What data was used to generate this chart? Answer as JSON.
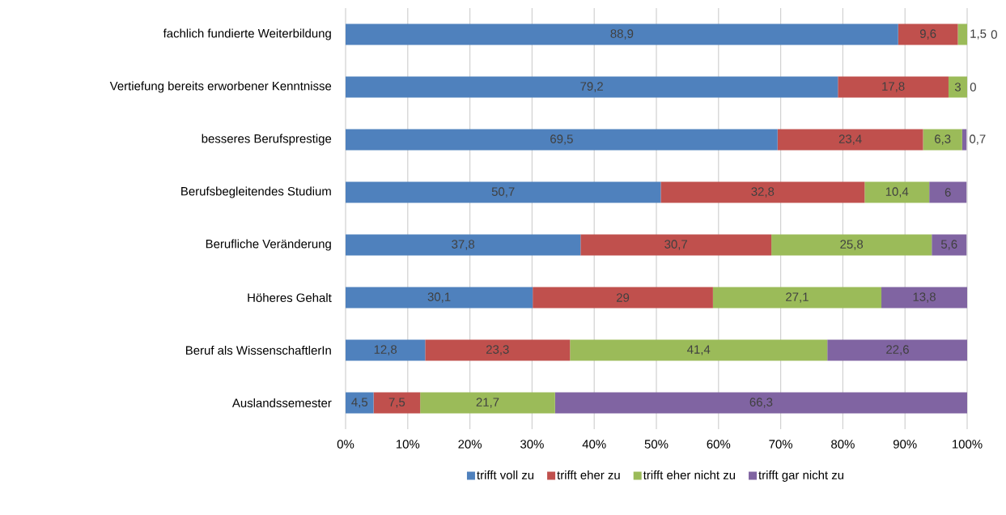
{
  "chart_data": {
    "type": "bar",
    "orientation": "horizontal",
    "stacked": true,
    "grid": "x",
    "legend": "bottom",
    "categories": [
      "fachlich fundierte Weiterbildung",
      "Vertiefung bereits erworbener Kenntnisse",
      "besseres Berufsprestige",
      "Berufsbegleitendes Studium",
      "Berufliche Veränderung",
      "Höheres Gehalt",
      "Beruf als WissenschaftlerIn",
      "Auslandssemester"
    ],
    "xlim": [
      0,
      100
    ],
    "xticks": [
      {
        "value": 0,
        "label": "0%"
      },
      {
        "value": 10,
        "label": "10%"
      },
      {
        "value": 20,
        "label": "20%"
      },
      {
        "value": 30,
        "label": "30%"
      },
      {
        "value": 40,
        "label": "40%"
      },
      {
        "value": 50,
        "label": "50%"
      },
      {
        "value": 60,
        "label": "60%"
      },
      {
        "value": 70,
        "label": "70%"
      },
      {
        "value": 80,
        "label": "80%"
      },
      {
        "value": 90,
        "label": "90%"
      },
      {
        "value": 100,
        "label": "100%"
      }
    ],
    "series": [
      {
        "name": "trifft voll zu",
        "color": "#4f81bd",
        "values": [
          88.9,
          79.2,
          69.5,
          50.7,
          37.8,
          30.1,
          12.8,
          4.5
        ],
        "value_labels": [
          "88,9",
          "79,2",
          "69,5",
          "50,7",
          "37,8",
          "30,1",
          "12,8",
          "4,5"
        ]
      },
      {
        "name": "trifft eher zu",
        "color": "#c0504d",
        "values": [
          9.6,
          17.8,
          23.4,
          32.8,
          30.7,
          29,
          23.3,
          7.5
        ],
        "value_labels": [
          "9,6",
          "17,8",
          "23,4",
          "32,8",
          "30,7",
          "29",
          "23,3",
          "7,5"
        ]
      },
      {
        "name": "trifft eher nicht zu",
        "color": "#9bbb59",
        "values": [
          1.5,
          3,
          6.3,
          10.4,
          25.8,
          27.1,
          41.4,
          21.7
        ],
        "value_labels": [
          "1,5",
          "3",
          "6,3",
          "10,4",
          "25,8",
          "27,1",
          "41,4",
          "21,7"
        ]
      },
      {
        "name": "trifft gar nicht zu",
        "color": "#8064a2",
        "values": [
          0,
          0,
          0.7,
          6,
          5.6,
          13.8,
          22.6,
          66.3
        ],
        "value_labels": [
          "0",
          "0",
          "0,7",
          "6",
          "5,6",
          "13,8",
          "22,6",
          "66,3"
        ]
      }
    ]
  }
}
